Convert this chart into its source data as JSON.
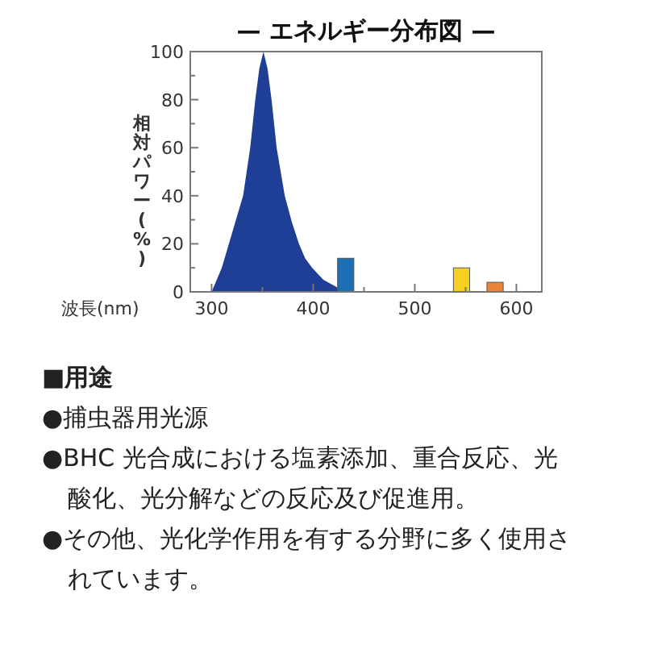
{
  "chart_data": {
    "type": "area",
    "title": "— エネルギー分布図 —",
    "xlabel": "波長(nm)",
    "ylabel": "相対パワー(%)",
    "xlim": [
      279,
      625
    ],
    "ylim": [
      0,
      100
    ],
    "xticks": [
      300,
      {
        "value": 350,
        "label": null
      },
      400,
      {
        "value": 450,
        "label": null
      },
      500,
      {
        "value": 550,
        "label": null
      },
      600
    ],
    "yticks": [
      0,
      {
        "value": 10,
        "label": null
      },
      20,
      {
        "value": 30,
        "label": null
      },
      40,
      {
        "value": 50,
        "label": null
      },
      60,
      {
        "value": 70,
        "label": null
      },
      80,
      {
        "value": 90,
        "label": null
      },
      100
    ],
    "series": [
      {
        "color": "#1f3f96",
        "x": [
          300,
          310,
          317,
          324,
          331,
          338,
          343,
          347,
          351,
          355,
          359,
          364,
          368,
          372,
          379,
          386,
          392,
          399,
          410,
          423,
          428
        ],
        "values": [
          0,
          10,
          20,
          30,
          40,
          60,
          80,
          93,
          100,
          93,
          80,
          60,
          50,
          40,
          29,
          20,
          14,
          10,
          5,
          2,
          0
        ]
      },
      {
        "type": "bar",
        "color": "#1a6fb5",
        "x": [
          432
        ],
        "values": [
          14
        ]
      },
      {
        "type": "bar",
        "color": "#f5d020",
        "x": [
          546
        ],
        "values": [
          10
        ]
      },
      {
        "type": "bar",
        "color": "#e8843a",
        "x": [
          579
        ],
        "values": [
          4
        ]
      }
    ],
    "annotations": [
      "■用途",
      "●捕虫器用光源",
      "●BHC 光合成における塩素添加、重合反応、光酸化、光分解などの反応及び促進用。",
      "●その他、光化学作用を有する分野に多く使用されています。"
    ]
  }
}
